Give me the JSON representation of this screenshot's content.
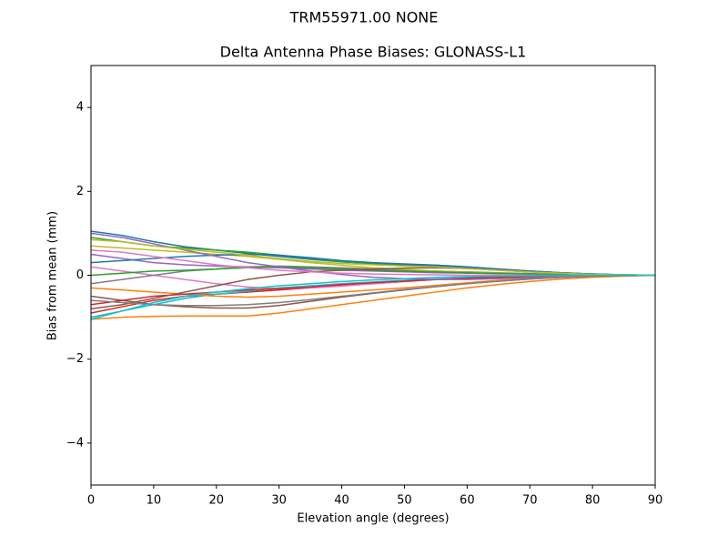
{
  "chart_data": {
    "type": "line",
    "suptitle": "TRM55971.00      NONE",
    "title": "Delta Antenna Phase Biases: GLONASS-L1",
    "x_label": "Elevation angle (degrees)",
    "y_label": "Bias from mean (mm)",
    "x": [
      0,
      5,
      10,
      15,
      20,
      25,
      30,
      35,
      40,
      45,
      50,
      55,
      60,
      65,
      70,
      75,
      80,
      85,
      90
    ],
    "xlim": [
      0,
      90
    ],
    "xticks": [
      0,
      10,
      20,
      30,
      40,
      50,
      60,
      70,
      80,
      90
    ],
    "ylim": [
      -5,
      5
    ],
    "yticks": [
      {
        "value": -4,
        "label": "−4"
      },
      {
        "value": -2,
        "label": "−2"
      },
      0,
      2,
      4
    ],
    "series": [
      {
        "color": "#1f77b4",
        "values": [
          1.05,
          0.95,
          0.8,
          0.68,
          0.6,
          0.52,
          0.45,
          0.38,
          0.32,
          0.28,
          0.25,
          0.22,
          0.18,
          0.14,
          0.1,
          0.06,
          0.03,
          0.01,
          0
        ]
      },
      {
        "color": "#ff7f0e",
        "values": [
          -1.05,
          -1.0,
          -0.98,
          -0.97,
          -0.97,
          -0.97,
          -0.9,
          -0.8,
          -0.7,
          -0.6,
          -0.5,
          -0.4,
          -0.3,
          -0.22,
          -0.15,
          -0.09,
          -0.05,
          -0.02,
          0
        ]
      },
      {
        "color": "#2ca02c",
        "values": [
          0.9,
          0.8,
          0.7,
          0.65,
          0.6,
          0.55,
          0.48,
          0.4,
          0.32,
          0.28,
          0.26,
          0.24,
          0.2,
          0.15,
          0.1,
          0.06,
          0.03,
          0.01,
          0
        ]
      },
      {
        "color": "#d62728",
        "values": [
          -0.9,
          -0.75,
          -0.6,
          -0.5,
          -0.45,
          -0.4,
          -0.35,
          -0.3,
          -0.25,
          -0.2,
          -0.15,
          -0.1,
          -0.07,
          -0.05,
          -0.03,
          -0.02,
          -0.01,
          0,
          0
        ]
      },
      {
        "color": "#9467bd",
        "values": [
          0.5,
          0.4,
          0.3,
          0.25,
          0.22,
          0.2,
          0.18,
          0.15,
          0.12,
          0.1,
          0.08,
          0.06,
          0.05,
          0.04,
          0.03,
          0.02,
          0.01,
          0,
          0
        ]
      },
      {
        "color": "#8c564b",
        "values": [
          -0.5,
          -0.6,
          -0.7,
          -0.75,
          -0.78,
          -0.78,
          -0.72,
          -0.62,
          -0.52,
          -0.43,
          -0.35,
          -0.27,
          -0.2,
          -0.14,
          -0.09,
          -0.05,
          -0.02,
          -0.01,
          0
        ]
      },
      {
        "color": "#e377c2",
        "values": [
          0.2,
          0.1,
          0.0,
          -0.1,
          -0.2,
          -0.28,
          -0.32,
          -0.3,
          -0.26,
          -0.2,
          -0.15,
          -0.1,
          -0.06,
          -0.03,
          -0.01,
          0,
          0,
          0,
          0
        ]
      },
      {
        "color": "#7f7f7f",
        "values": [
          -0.2,
          -0.1,
          0.0,
          0.1,
          0.15,
          0.2,
          0.22,
          0.2,
          0.18,
          0.15,
          0.12,
          0.1,
          0.08,
          0.06,
          0.04,
          0.02,
          0.01,
          0,
          0
        ]
      },
      {
        "color": "#bcbd22",
        "values": [
          0.7,
          0.65,
          0.6,
          0.55,
          0.5,
          0.45,
          0.38,
          0.3,
          0.24,
          0.18,
          0.14,
          0.1,
          0.07,
          0.05,
          0.03,
          0.02,
          0.01,
          0,
          0
        ]
      },
      {
        "color": "#17becf",
        "values": [
          -1.0,
          -0.85,
          -0.7,
          -0.55,
          -0.45,
          -0.38,
          -0.3,
          -0.25,
          -0.2,
          -0.16,
          -0.12,
          -0.09,
          -0.06,
          -0.04,
          -0.02,
          -0.01,
          0,
          0,
          0
        ]
      },
      {
        "color": "#1f77b4",
        "values": [
          0.3,
          0.35,
          0.4,
          0.45,
          0.48,
          0.5,
          0.48,
          0.42,
          0.35,
          0.3,
          0.27,
          0.24,
          0.2,
          0.15,
          0.1,
          0.06,
          0.03,
          0.01,
          0
        ]
      },
      {
        "color": "#ff7f0e",
        "values": [
          -0.3,
          -0.35,
          -0.4,
          -0.45,
          -0.5,
          -0.52,
          -0.5,
          -0.45,
          -0.4,
          -0.35,
          -0.3,
          -0.24,
          -0.18,
          -0.12,
          -0.08,
          -0.04,
          -0.02,
          -0.01,
          0
        ]
      },
      {
        "color": "#2ca02c",
        "values": [
          0.0,
          0.05,
          0.1,
          0.12,
          0.15,
          0.18,
          0.2,
          0.18,
          0.15,
          0.12,
          0.1,
          0.08,
          0.06,
          0.04,
          0.03,
          0.02,
          0.01,
          0,
          0
        ]
      },
      {
        "color": "#d62728",
        "values": [
          -0.7,
          -0.6,
          -0.5,
          -0.45,
          -0.4,
          -0.35,
          -0.32,
          -0.28,
          -0.22,
          -0.18,
          -0.14,
          -0.1,
          -0.07,
          -0.05,
          -0.03,
          -0.02,
          -0.01,
          0,
          0
        ]
      },
      {
        "color": "#9467bd",
        "values": [
          1.0,
          0.9,
          0.75,
          0.6,
          0.45,
          0.3,
          0.2,
          0.1,
          0.02,
          -0.05,
          -0.08,
          -0.1,
          -0.1,
          -0.08,
          -0.06,
          -0.03,
          -0.01,
          0,
          0
        ]
      },
      {
        "color": "#8c564b",
        "values": [
          -0.8,
          -0.7,
          -0.55,
          -0.4,
          -0.25,
          -0.1,
          0.0,
          0.08,
          0.12,
          0.15,
          0.17,
          0.18,
          0.16,
          0.12,
          0.08,
          0.05,
          0.02,
          0.01,
          0
        ]
      },
      {
        "color": "#e377c2",
        "values": [
          0.6,
          0.55,
          0.45,
          0.35,
          0.25,
          0.18,
          0.12,
          0.08,
          0.05,
          0.03,
          0.02,
          0.01,
          0,
          0,
          0,
          0,
          0,
          0,
          0
        ]
      },
      {
        "color": "#7f7f7f",
        "values": [
          -0.6,
          -0.65,
          -0.7,
          -0.72,
          -0.72,
          -0.7,
          -0.65,
          -0.58,
          -0.5,
          -0.42,
          -0.34,
          -0.27,
          -0.2,
          -0.14,
          -0.09,
          -0.05,
          -0.02,
          -0.01,
          0
        ]
      },
      {
        "color": "#bcbd22",
        "values": [
          0.85,
          0.8,
          0.7,
          0.62,
          0.55,
          0.48,
          0.4,
          0.33,
          0.28,
          0.25,
          0.22,
          0.2,
          0.16,
          0.12,
          0.08,
          0.05,
          0.02,
          0.01,
          0
        ]
      },
      {
        "color": "#17becf",
        "values": [
          -1.05,
          -0.85,
          -0.65,
          -0.5,
          -0.4,
          -0.32,
          -0.25,
          -0.2,
          -0.15,
          -0.11,
          -0.08,
          -0.05,
          -0.03,
          -0.02,
          -0.01,
          0,
          0,
          0,
          0
        ]
      }
    ]
  }
}
